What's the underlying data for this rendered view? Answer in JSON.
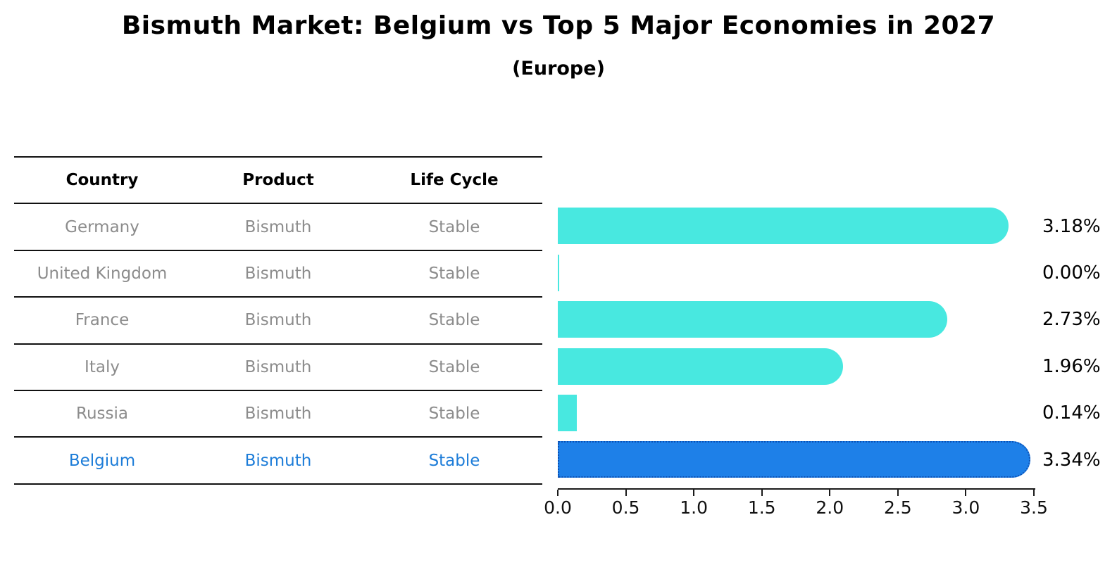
{
  "title": "Bismuth Market: Belgium vs Top 5 Major Economies in 2027",
  "subtitle": "(Europe)",
  "table": {
    "headers": [
      "Country",
      "Product",
      "Life Cycle"
    ],
    "rows": [
      {
        "country": "Germany",
        "product": "Bismuth",
        "life_cycle": "Stable",
        "highlight": false
      },
      {
        "country": "United Kingdom",
        "product": "Bismuth",
        "life_cycle": "Stable",
        "highlight": false
      },
      {
        "country": "France",
        "product": "Bismuth",
        "life_cycle": "Stable",
        "highlight": false
      },
      {
        "country": "Italy",
        "product": "Bismuth",
        "life_cycle": "Stable",
        "highlight": false
      },
      {
        "country": "Russia",
        "product": "Bismuth",
        "life_cycle": "Stable",
        "highlight": false
      },
      {
        "country": "Belgium",
        "product": "Bismuth",
        "life_cycle": "Stable",
        "highlight": true
      }
    ]
  },
  "chart_data": {
    "type": "bar",
    "orientation": "horizontal",
    "title": "Bismuth Market: Belgium vs Top 5 Major Economies in 2027",
    "subtitle": "(Europe)",
    "categories": [
      "Germany",
      "United Kingdom",
      "France",
      "Italy",
      "Russia",
      "Belgium"
    ],
    "values": [
      3.18,
      0.0,
      2.73,
      1.96,
      0.14,
      3.34
    ],
    "value_labels": [
      "3.18%",
      "0.00%",
      "2.73%",
      "1.96%",
      "0.14%",
      "3.34%"
    ],
    "highlight_index": 5,
    "xlim": [
      0,
      3.5
    ],
    "xtick_labels": [
      "0.0",
      "0.5",
      "1.0",
      "1.5",
      "2.0",
      "2.5",
      "3.0",
      "3.5"
    ],
    "grid": false,
    "legend": false,
    "bar_color": "#48e8e0",
    "highlight_bar_color": "#1e80e8",
    "highlight_border_color": "#0b50b4"
  },
  "colors": {
    "table_text": "#8c8c8c",
    "highlight_text": "#1c7cd8",
    "line": "#111111",
    "title_text": "#000000"
  }
}
